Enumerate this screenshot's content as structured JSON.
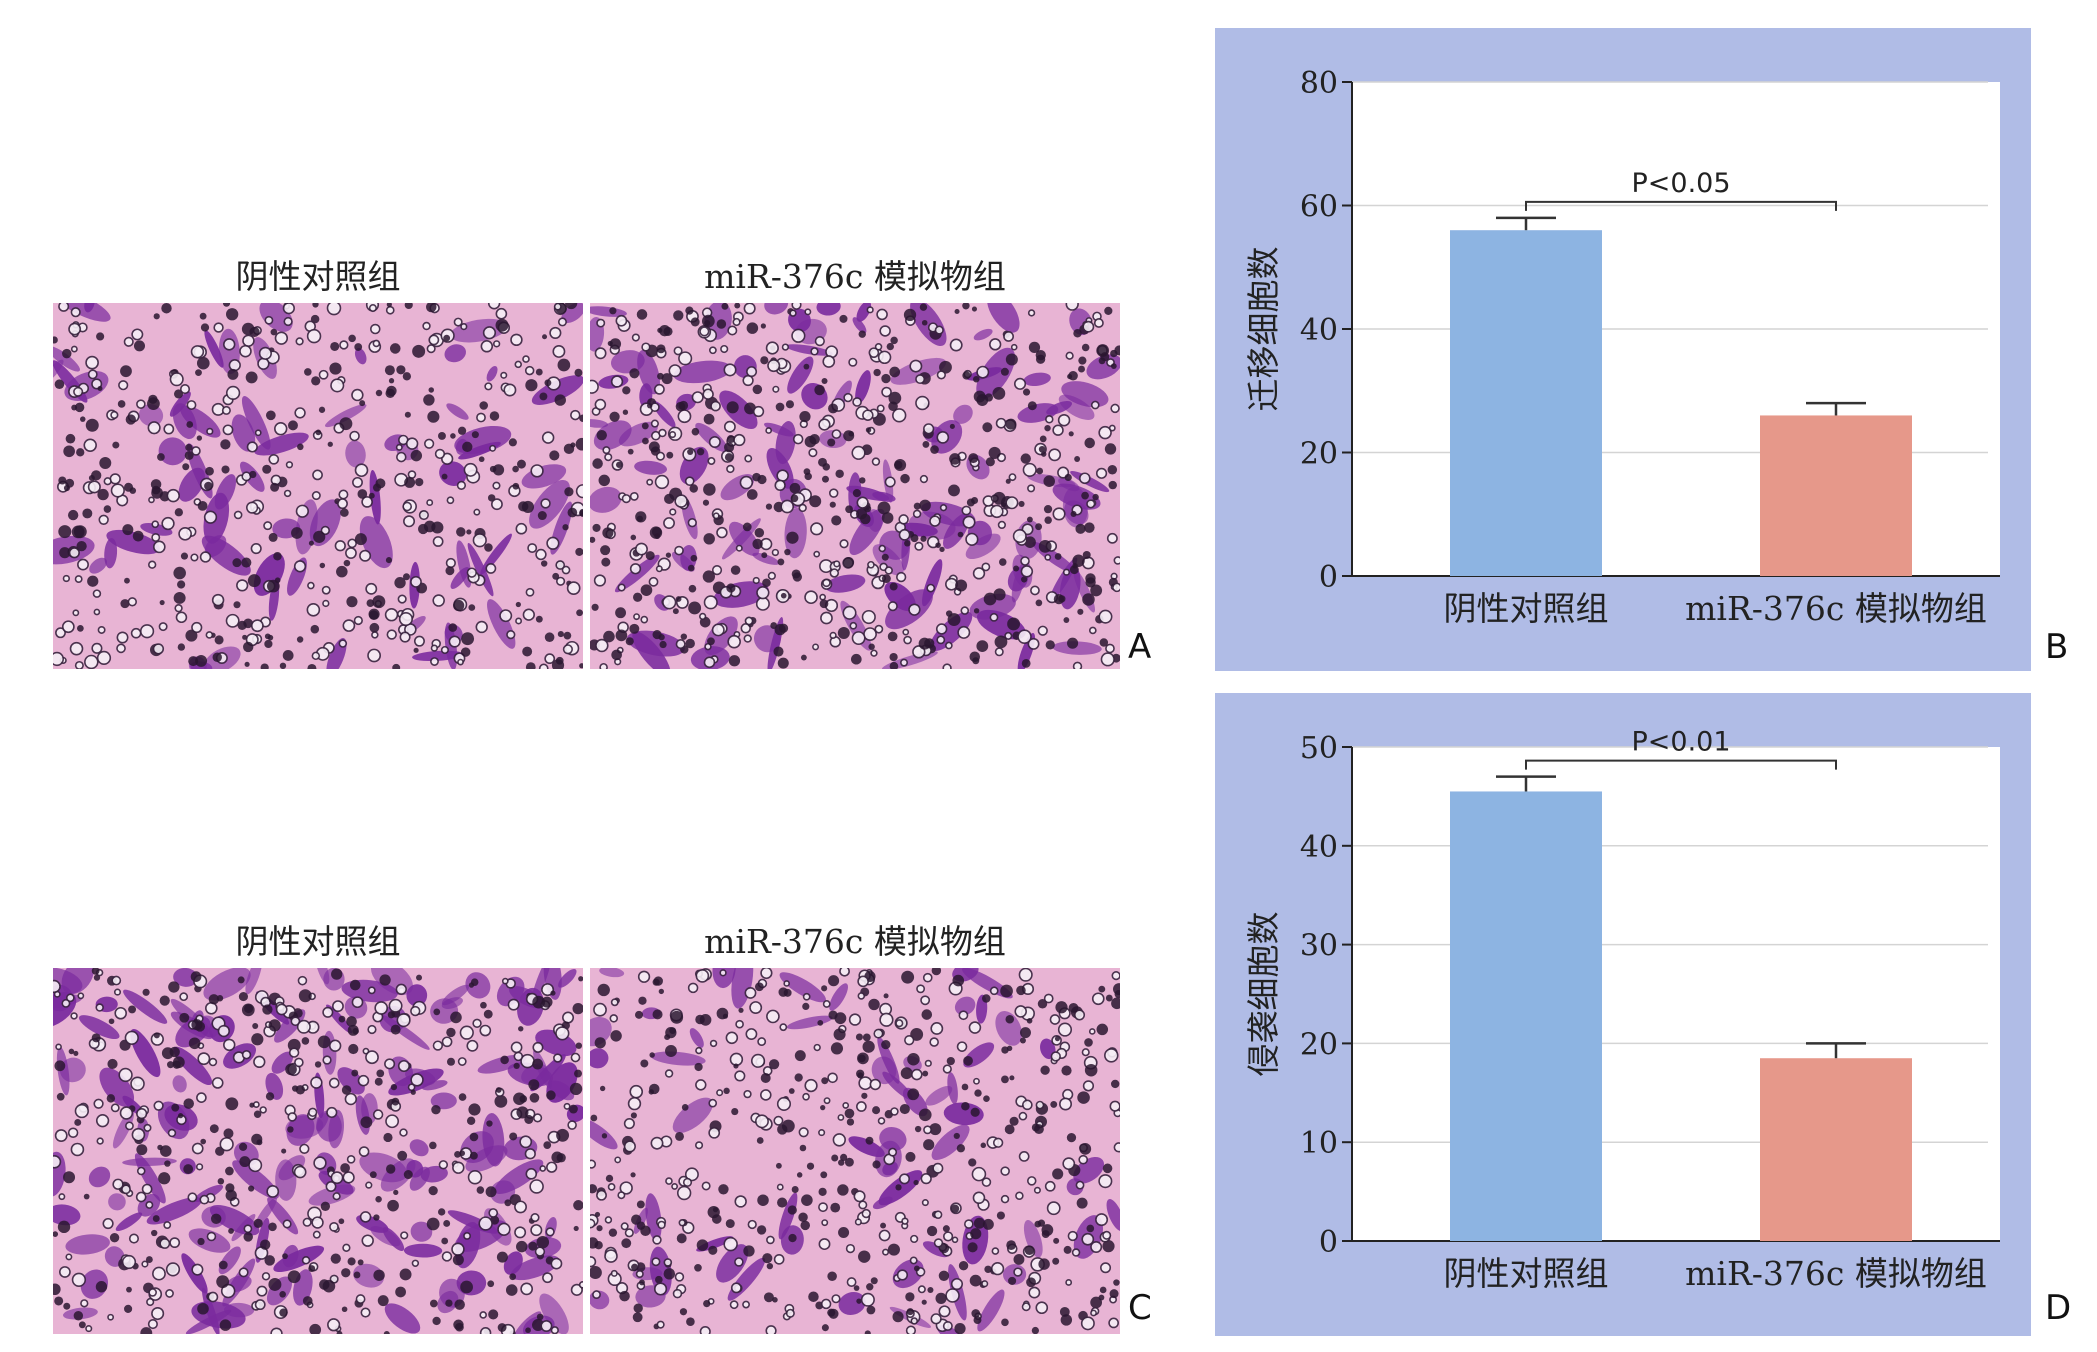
{
  "panels": {
    "A": {
      "letter": "A",
      "left_title": "阴性对照组",
      "right_title": "miR-376c 模拟物组"
    },
    "C": {
      "letter": "C",
      "left_title": "阴性对照组",
      "right_title": "miR-376c 模拟物组"
    },
    "B": {
      "letter": "B"
    },
    "D": {
      "letter": "D"
    }
  },
  "colors": {
    "chart_background": "#b0bce6",
    "plot_background": "#ffffff",
    "bar_control": "#8db4e2",
    "bar_mimic": "#e6988a",
    "micro_background": "#e8b4d4",
    "cell_stain": "#7a2a9e",
    "pore_dark": "#2a1630"
  },
  "chart_data": [
    {
      "type": "bar",
      "panel": "B",
      "categories": [
        "阴性对照组",
        "miR-376c 模拟物组"
      ],
      "values": [
        56,
        26
      ],
      "error": [
        2,
        2
      ],
      "ylabel": "迁移细胞数",
      "ylim": [
        0,
        80
      ],
      "yticks": [
        0,
        20,
        40,
        60,
        80
      ],
      "grid": true,
      "annotation": "P<0.05"
    },
    {
      "type": "bar",
      "panel": "D",
      "categories": [
        "阴性对照组",
        "miR-376c 模拟物组"
      ],
      "values": [
        45.5,
        18.5
      ],
      "error": [
        1.5,
        1.5
      ],
      "ylabel": "侵袭细胞数",
      "ylim": [
        0,
        50
      ],
      "yticks": [
        0,
        10,
        20,
        30,
        40,
        50
      ],
      "grid": true,
      "annotation": "P<0.01"
    }
  ]
}
